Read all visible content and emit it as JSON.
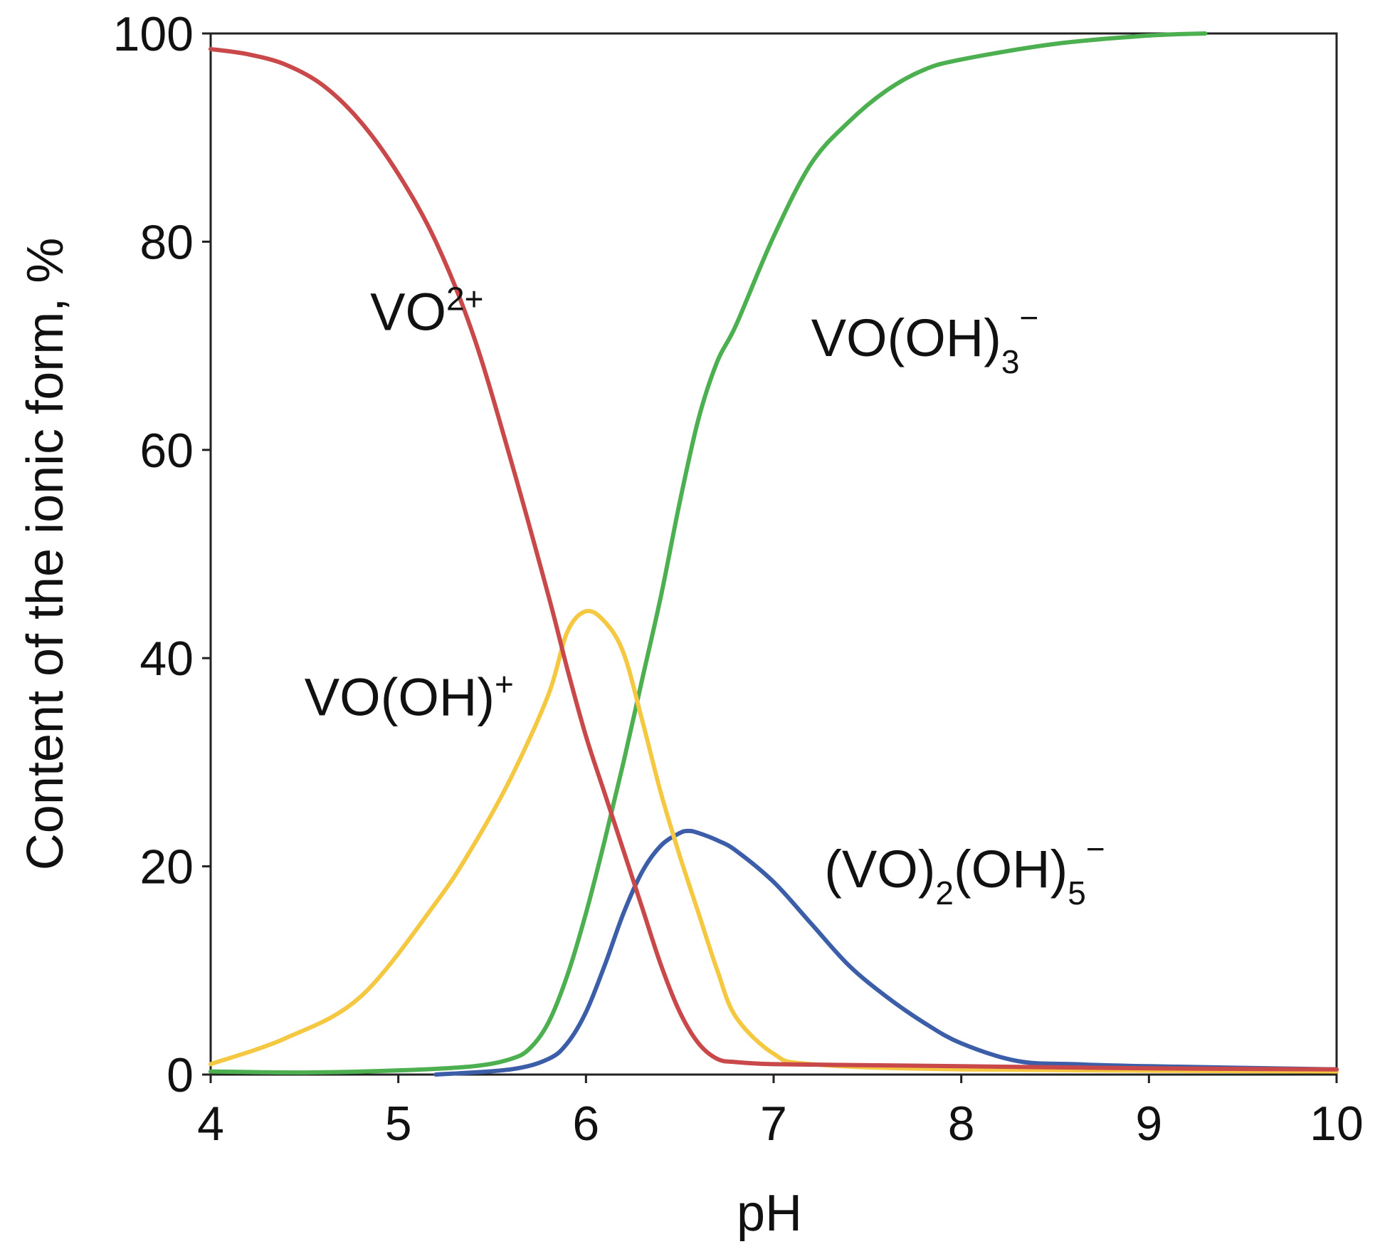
{
  "chart_data": {
    "type": "line",
    "title": "",
    "xlabel": "pH",
    "ylabel": "Content of the ionic form, %",
    "xlim": [
      4,
      10
    ],
    "ylim": [
      0,
      100
    ],
    "xticks": [
      4,
      5,
      6,
      7,
      8,
      9,
      10
    ],
    "yticks": [
      0,
      20,
      40,
      60,
      80,
      100
    ],
    "grid": false,
    "legend": "inline labels",
    "series": [
      {
        "name": "VO2+",
        "color": "#c9484a",
        "x": [
          4.0,
          4.2,
          4.4,
          4.6,
          4.8,
          5.0,
          5.2,
          5.4,
          5.6,
          5.8,
          5.9,
          6.0,
          6.1,
          6.2,
          6.3,
          6.4,
          6.5,
          6.6,
          6.7,
          6.8,
          7.0,
          7.5,
          8.0,
          9.0,
          10.0
        ],
        "values": [
          98.5,
          98.0,
          97.0,
          95.0,
          91.5,
          86.5,
          80.0,
          71.0,
          59.0,
          46.0,
          39.0,
          32.5,
          27.0,
          21.5,
          16.0,
          10.5,
          6.0,
          3.0,
          1.5,
          1.2,
          1.0,
          0.9,
          0.8,
          0.6,
          0.5
        ]
      },
      {
        "name": "VO(OH)+",
        "color": "#f5c842",
        "x": [
          4.0,
          4.4,
          4.8,
          5.2,
          5.4,
          5.6,
          5.8,
          5.9,
          6.0,
          6.1,
          6.2,
          6.3,
          6.4,
          6.5,
          6.6,
          6.7,
          6.8,
          7.0,
          7.2,
          8.0,
          10.0
        ],
        "values": [
          1.0,
          3.5,
          7.5,
          16.5,
          22.0,
          28.5,
          36.5,
          42.5,
          44.5,
          43.5,
          40.5,
          34.0,
          27.0,
          21.0,
          15.5,
          10.0,
          5.5,
          2.0,
          1.0,
          0.5,
          0.3
        ]
      },
      {
        "name": "VO(OH)3−",
        "color": "#4caf50",
        "x": [
          4.0,
          4.5,
          5.0,
          5.4,
          5.6,
          5.7,
          5.8,
          5.9,
          6.0,
          6.1,
          6.2,
          6.3,
          6.4,
          6.5,
          6.6,
          6.7,
          6.8,
          7.0,
          7.2,
          7.4,
          7.6,
          7.8,
          8.0,
          8.5,
          9.0,
          9.3
        ],
        "values": [
          0.3,
          0.2,
          0.4,
          0.8,
          1.5,
          2.5,
          5.0,
          9.5,
          15.5,
          22.5,
          30.0,
          38.0,
          46.0,
          55.0,
          63.0,
          68.5,
          72.0,
          80.5,
          87.5,
          91.5,
          94.5,
          96.5,
          97.5,
          99.0,
          99.8,
          100.0
        ]
      },
      {
        "name": "(VO)2(OH)5−",
        "color": "#3c5ea8",
        "x": [
          5.2,
          5.6,
          5.8,
          5.9,
          6.0,
          6.1,
          6.2,
          6.3,
          6.4,
          6.5,
          6.55,
          6.6,
          6.7,
          6.8,
          7.0,
          7.2,
          7.4,
          7.6,
          7.8,
          8.0,
          8.3,
          8.6,
          9.0,
          10.0
        ],
        "values": [
          0.0,
          0.5,
          1.5,
          3.0,
          6.0,
          10.5,
          15.5,
          19.5,
          22.0,
          23.2,
          23.4,
          23.2,
          22.5,
          21.5,
          18.5,
          14.5,
          10.5,
          7.5,
          5.0,
          3.0,
          1.3,
          1.0,
          0.8,
          0.5
        ]
      }
    ],
    "annotations": [
      {
        "series": "VO2+",
        "base": "VO",
        "sup": "2+",
        "sub": "",
        "x": 4.85,
        "y": 71.5
      },
      {
        "series": "VO(OH)3−",
        "base": "VO(OH)",
        "sub": "3",
        "sup": "−",
        "x": 7.2,
        "y": 69.0
      },
      {
        "series": "VO(OH)+",
        "base": "VO(OH)",
        "sup": "+",
        "sub": "",
        "x": 4.5,
        "y": 34.5
      },
      {
        "series": "(VO)2(OH)5−",
        "base1": "(VO)",
        "sub1": "2",
        "base2": "(OH)",
        "sub2": "5",
        "sup": "−",
        "x": 7.27,
        "y": 18.0
      }
    ]
  }
}
